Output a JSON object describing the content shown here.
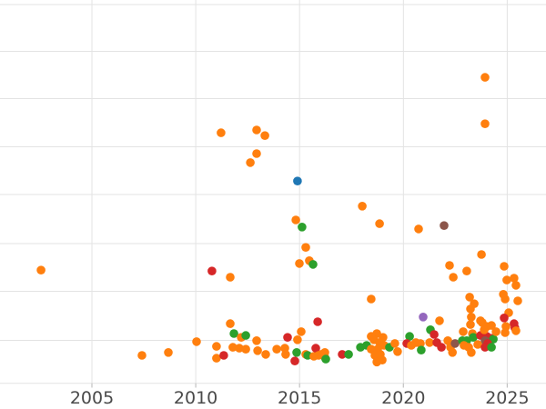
{
  "figure": {
    "background": "#ffffff",
    "grid_color": "#e3e3e3",
    "tick_color": "#c2c2c2",
    "label_color": "#4a4a4a"
  },
  "chart_data": {
    "type": "scatter",
    "title": "",
    "xlabel": "",
    "ylabel": "",
    "legend": "none",
    "grid": "on",
    "x_axis": "years, linear, ticks every 5 years",
    "y_axis": "unlabeled axis; y given in gridline units above the bottom gridline (9 horizontal gridlines visible)",
    "xlim_years": [
      2000.6,
      2026.9
    ],
    "ylim_units": [
      0,
      8
    ],
    "x_ticks": [
      {
        "year": 2005,
        "label": "2005"
      },
      {
        "year": 2010,
        "label": "2010"
      },
      {
        "year": 2015,
        "label": "2015"
      },
      {
        "year": 2020,
        "label": "2020"
      },
      {
        "year": 2025,
        "label": "2025"
      }
    ],
    "series_colors": {
      "o": "#ff7f0e",
      "g": "#2ca02c",
      "r": "#d62728",
      "b": "#1f77b4",
      "p": "#9467bd",
      "br": "#8c564b"
    },
    "marker_radius_px": 4.8,
    "points": [
      [
        2002.55,
        2.39,
        "o"
      ],
      [
        2011.22,
        5.29,
        "o"
      ],
      [
        2012.93,
        5.35,
        "o"
      ],
      [
        2013.33,
        5.23,
        "o"
      ],
      [
        2012.93,
        4.85,
        "o"
      ],
      [
        2012.63,
        4.66,
        "o"
      ],
      [
        2014.9,
        4.27,
        "b"
      ],
      [
        2010.78,
        2.37,
        "r"
      ],
      [
        2011.66,
        2.24,
        "o"
      ],
      [
        2007.41,
        0.59,
        "o"
      ],
      [
        2008.68,
        0.65,
        "o"
      ],
      [
        2010.04,
        0.88,
        "o"
      ],
      [
        2011.0,
        0.78,
        "o"
      ],
      [
        2011.0,
        0.53,
        "o"
      ],
      [
        2011.35,
        0.59,
        "r"
      ],
      [
        2011.66,
        1.26,
        "o"
      ],
      [
        2011.84,
        1.05,
        "g"
      ],
      [
        2012.19,
        0.97,
        "o"
      ],
      [
        2012.41,
        1.01,
        "g"
      ],
      [
        2011.79,
        0.76,
        "o"
      ],
      [
        2012.1,
        0.74,
        "o"
      ],
      [
        2012.41,
        0.72,
        "o"
      ],
      [
        2012.93,
        0.9,
        "o"
      ],
      [
        2012.98,
        0.69,
        "o"
      ],
      [
        2013.37,
        0.61,
        "o"
      ],
      [
        2013.9,
        0.72,
        "o"
      ],
      [
        2014.29,
        0.74,
        "o"
      ],
      [
        2014.33,
        0.61,
        "o"
      ],
      [
        2014.42,
        0.97,
        "r"
      ],
      [
        2014.9,
        0.92,
        "o"
      ],
      [
        2015.08,
        1.09,
        "o"
      ],
      [
        2014.77,
        0.47,
        "r"
      ],
      [
        2014.86,
        0.65,
        "g"
      ],
      [
        2015.3,
        0.61,
        "o"
      ],
      [
        2015.39,
        0.59,
        "g"
      ],
      [
        2015.69,
        0.57,
        "o"
      ],
      [
        2015.78,
        0.74,
        "r"
      ],
      [
        2015.91,
        0.59,
        "o"
      ],
      [
        2016.04,
        0.61,
        "o"
      ],
      [
        2016.22,
        0.55,
        "o"
      ],
      [
        2015.87,
        1.3,
        "r"
      ],
      [
        2014.82,
        3.45,
        "o"
      ],
      [
        2015.12,
        3.3,
        "g"
      ],
      [
        2015.3,
        2.87,
        "o"
      ],
      [
        2014.99,
        2.53,
        "o"
      ],
      [
        2015.47,
        2.59,
        "o"
      ],
      [
        2015.65,
        2.51,
        "g"
      ],
      [
        2018.02,
        3.74,
        "o"
      ],
      [
        2018.85,
        3.37,
        "o"
      ],
      [
        2018.45,
        1.78,
        "o"
      ],
      [
        2016.22,
        0.65,
        "o"
      ],
      [
        2016.26,
        0.51,
        "g"
      ],
      [
        2017.05,
        0.61,
        "r"
      ],
      [
        2017.36,
        0.61,
        "g"
      ],
      [
        2017.93,
        0.76,
        "g"
      ],
      [
        2018.23,
        0.8,
        "g"
      ],
      [
        2018.45,
        0.99,
        "o"
      ],
      [
        2018.72,
        1.05,
        "o"
      ],
      [
        2019.02,
        0.97,
        "o"
      ],
      [
        2018.58,
        0.92,
        "o"
      ],
      [
        2018.85,
        0.86,
        "o"
      ],
      [
        2019.07,
        0.8,
        "o"
      ],
      [
        2018.45,
        0.72,
        "o"
      ],
      [
        2018.76,
        0.72,
        "o"
      ],
      [
        2018.63,
        0.59,
        "o"
      ],
      [
        2018.89,
        0.61,
        "o"
      ],
      [
        2018.72,
        0.45,
        "o"
      ],
      [
        2018.98,
        0.49,
        "o"
      ],
      [
        2019.33,
        0.76,
        "g"
      ],
      [
        2019.59,
        0.84,
        "o"
      ],
      [
        2019.72,
        0.67,
        "o"
      ],
      [
        2020.3,
        0.99,
        "g"
      ],
      [
        2020.16,
        0.84,
        "r"
      ],
      [
        2020.38,
        0.8,
        "o"
      ],
      [
        2020.6,
        0.86,
        "o"
      ],
      [
        2020.82,
        0.84,
        "o"
      ],
      [
        2020.95,
        1.4,
        "p"
      ],
      [
        2020.73,
        3.26,
        "o"
      ],
      [
        2021.96,
        3.33,
        "br"
      ],
      [
        2023.76,
        2.72,
        "o"
      ],
      [
        2022.22,
        2.49,
        "o"
      ],
      [
        2022.4,
        2.24,
        "o"
      ],
      [
        2023.05,
        2.37,
        "o"
      ],
      [
        2021.3,
        1.13,
        "g"
      ],
      [
        2021.48,
        1.03,
        "r"
      ],
      [
        2021.74,
        1.32,
        "o"
      ],
      [
        2020.86,
        0.7,
        "g"
      ],
      [
        2021.26,
        0.86,
        "o"
      ],
      [
        2021.61,
        0.86,
        "r"
      ],
      [
        2021.83,
        0.76,
        "r"
      ],
      [
        2022.14,
        0.9,
        "o"
      ],
      [
        2022.27,
        0.76,
        "o"
      ],
      [
        2022.36,
        0.65,
        "o"
      ],
      [
        2022.49,
        0.84,
        "br"
      ],
      [
        2022.84,
        0.9,
        "g"
      ],
      [
        2023.05,
        0.9,
        "g"
      ],
      [
        2022.92,
        0.8,
        "o"
      ],
      [
        2023.19,
        1.82,
        "o"
      ],
      [
        2023.41,
        1.68,
        "o"
      ],
      [
        2023.23,
        1.57,
        "o"
      ],
      [
        2023.27,
        1.4,
        "o"
      ],
      [
        2023.23,
        1.24,
        "o"
      ],
      [
        2023.8,
        1.28,
        "o"
      ],
      [
        2024.02,
        1.2,
        "o"
      ],
      [
        2022.88,
        1.09,
        "o"
      ],
      [
        2023.32,
        1.05,
        "o"
      ],
      [
        2023.36,
        0.97,
        "g"
      ],
      [
        2023.71,
        1.01,
        "r"
      ],
      [
        2024.02,
        0.99,
        "r"
      ],
      [
        2024.24,
        0.95,
        "r"
      ],
      [
        2024.33,
        0.93,
        "g"
      ],
      [
        2023.93,
        0.9,
        "br"
      ],
      [
        2024.06,
        0.84,
        "r"
      ],
      [
        2023.58,
        0.82,
        "o"
      ],
      [
        2023.93,
        0.76,
        "r"
      ],
      [
        2024.24,
        0.76,
        "g"
      ],
      [
        2023.27,
        0.65,
        "o"
      ],
      [
        2023.14,
        0.76,
        "o"
      ],
      [
        2023.71,
        1.32,
        "o"
      ],
      [
        2023.89,
        1.13,
        "o"
      ],
      [
        2024.24,
        1.22,
        "o"
      ],
      [
        2024.46,
        1.09,
        "o"
      ],
      [
        2024.81,
        1.88,
        "o"
      ],
      [
        2024.9,
        1.78,
        "o"
      ],
      [
        2024.85,
        2.47,
        "o"
      ],
      [
        2024.98,
        2.18,
        "o"
      ],
      [
        2025.33,
        2.22,
        "o"
      ],
      [
        2025.42,
        2.07,
        "o"
      ],
      [
        2025.51,
        1.74,
        "o"
      ],
      [
        2025.07,
        1.49,
        "o"
      ],
      [
        2024.85,
        1.38,
        "r"
      ],
      [
        2025.33,
        1.26,
        "r"
      ],
      [
        2025.37,
        1.17,
        "r"
      ],
      [
        2024.94,
        1.2,
        "o"
      ],
      [
        2024.9,
        1.07,
        "o"
      ],
      [
        2025.42,
        1.11,
        "o"
      ],
      [
        2023.93,
        6.46,
        "o"
      ],
      [
        2023.93,
        5.48,
        "o"
      ]
    ]
  }
}
